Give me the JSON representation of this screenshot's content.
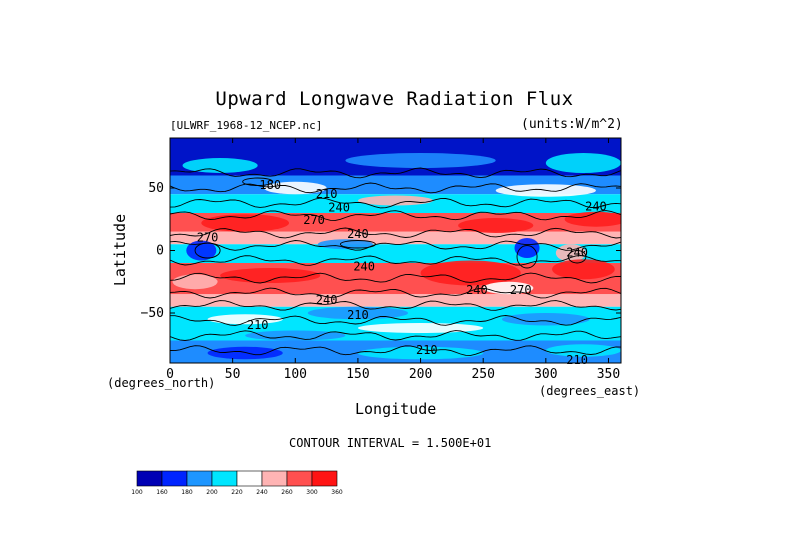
{
  "chart_data": {
    "type": "heatmap",
    "title": "Upward Longwave Radiation Flux",
    "file_label": "[ULWRF_1968-12_NCEP.nc]",
    "units_label": "(units:W/m^2)",
    "xlabel": "Longitude",
    "ylabel": "Latitude",
    "x_unit": "(degrees_east)",
    "y_unit": "(degrees_north)",
    "xlim": [
      0,
      360
    ],
    "ylim": [
      -90,
      90
    ],
    "x_ticks": [
      0,
      50,
      100,
      150,
      200,
      250,
      300,
      350
    ],
    "y_ticks": [
      50,
      0,
      -50
    ],
    "x_tick_labels": [
      "0",
      "50",
      "100",
      "150",
      "200",
      "250",
      "300",
      "350"
    ],
    "y_tick_labels": [
      "50",
      "0",
      "−50"
    ],
    "contour_interval_text": "CONTOUR INTERVAL = 1.500E+01",
    "contour_labels": [
      {
        "text": "180",
        "lon": 80,
        "lat": 52
      },
      {
        "text": "210",
        "lon": 125,
        "lat": 45
      },
      {
        "text": "240",
        "lon": 135,
        "lat": 34
      },
      {
        "text": "270",
        "lon": 115,
        "lat": 24
      },
      {
        "text": "240",
        "lon": 150,
        "lat": 13
      },
      {
        "text": "270",
        "lon": 30,
        "lat": 10
      },
      {
        "text": "240",
        "lon": 155,
        "lat": -13
      },
      {
        "text": "270",
        "lon": 280,
        "lat": -32
      },
      {
        "text": "240",
        "lon": 245,
        "lat": -32
      },
      {
        "text": "240",
        "lon": 125,
        "lat": -40
      },
      {
        "text": "210",
        "lon": 150,
        "lat": -52
      },
      {
        "text": "210",
        "lon": 70,
        "lat": -60
      },
      {
        "text": "240",
        "lon": 340,
        "lat": 35
      },
      {
        "text": "240",
        "lon": 325,
        "lat": -2
      },
      {
        "text": "210",
        "lon": 205,
        "lat": -80
      },
      {
        "text": "210",
        "lon": 325,
        "lat": -88
      }
    ],
    "colorbar": {
      "levels": [
        "100",
        "160",
        "180",
        "200",
        "220",
        "240",
        "260",
        "300",
        "360"
      ],
      "colors": [
        "#0000b4",
        "#0024ff",
        "#1e96ff",
        "#00e6ff",
        "#ffffff",
        "#ffb4b4",
        "#ff5050",
        "#ff1414"
      ]
    },
    "colors": {
      "ocean_cold": "#00e6ff",
      "pole_deep": "#0014c8",
      "warm_pink": "#ffb4b4",
      "warm_red": "#ff5050",
      "hot_red": "#ff1e1e"
    }
  }
}
